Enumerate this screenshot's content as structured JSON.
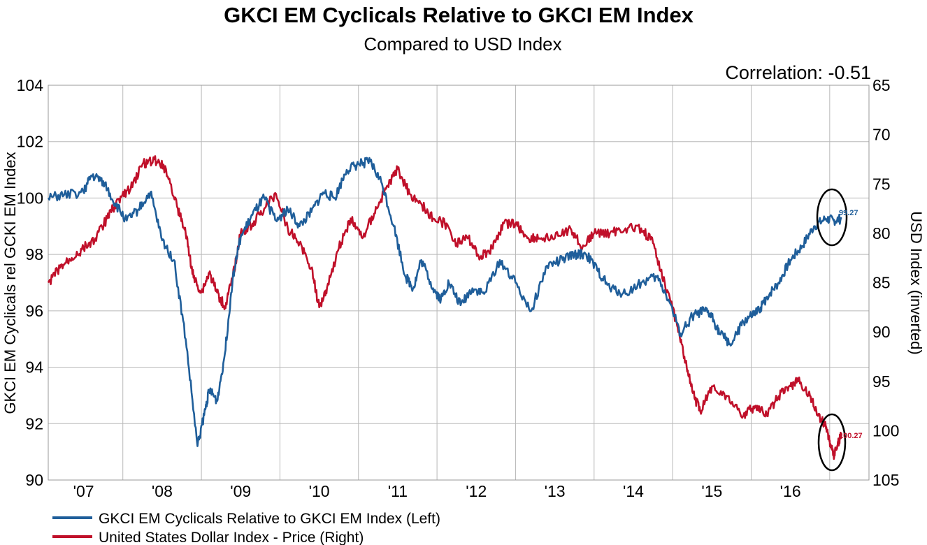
{
  "chart_data": {
    "type": "line",
    "title": "GKCI EM Cyclicals Relative to GKCI EM Index",
    "subtitle": "Compared to USD Index",
    "annotation": "Correlation: -0.51",
    "ylabel_left": "GKCI EM Cyclicals rel GCKI EM Index",
    "ylabel_right": "USD Index (inverted)",
    "ylim_left": [
      90,
      104
    ],
    "ylim_right": [
      65,
      105
    ],
    "right_axis_inverted": true,
    "x_ticks": [
      "'07",
      "'08",
      "'09",
      "'10",
      "'11",
      "'12",
      "'13",
      "'14",
      "'15",
      "'16"
    ],
    "y_ticks_left": [
      "90",
      "92",
      "94",
      "96",
      "98",
      "100",
      "102",
      "104"
    ],
    "y_ticks_right": [
      "65",
      "70",
      "75",
      "80",
      "85",
      "90",
      "95",
      "100",
      "105"
    ],
    "grid": true,
    "legend_position": "bottom",
    "series": [
      {
        "name": "GKCI EM Cyclicals Relative to GKCI EM Index  (Left)",
        "axis": "left",
        "color": "#1f5e9a",
        "end_label": "99.27",
        "x": [
          2006.55,
          2006.75,
          2007.0,
          2007.1,
          2007.25,
          2007.4,
          2007.55,
          2007.7,
          2007.85,
          2008.0,
          2008.15,
          2008.3,
          2008.45,
          2008.55,
          2008.6,
          2008.7,
          2008.8,
          2008.9,
          2009.0,
          2009.15,
          2009.3,
          2009.45,
          2009.6,
          2009.75,
          2009.9,
          2010.05,
          2010.2,
          2010.35,
          2010.5,
          2010.65,
          2010.8,
          2010.95,
          2011.1,
          2011.2,
          2011.3,
          2011.45,
          2011.55,
          2011.65,
          2011.8,
          2011.95,
          2012.1,
          2012.3,
          2012.5,
          2012.7,
          2012.9,
          2013.1,
          2013.25,
          2013.4,
          2013.55,
          2013.7,
          2013.9,
          2014.1,
          2014.3,
          2014.45,
          2014.6,
          2014.75,
          2014.9,
          2015.0,
          2015.1,
          2015.25,
          2015.4,
          2015.5,
          2015.6,
          2015.7,
          2015.85,
          2016.0,
          2016.15,
          2016.3,
          2016.45,
          2016.55,
          2016.65
        ],
        "y": [
          100.0,
          100.1,
          100.2,
          100.8,
          100.6,
          99.8,
          99.2,
          99.6,
          100.2,
          98.5,
          97.8,
          95.0,
          91.2,
          92.5,
          93.2,
          92.8,
          94.5,
          97.2,
          98.6,
          99.4,
          100.0,
          99.2,
          99.6,
          99.0,
          99.5,
          100.2,
          100.0,
          101.0,
          101.2,
          101.3,
          100.5,
          99.0,
          97.2,
          96.8,
          97.8,
          96.8,
          96.4,
          97.0,
          96.2,
          96.8,
          96.6,
          97.8,
          97.0,
          96.0,
          97.6,
          97.8,
          98.0,
          98.0,
          97.4,
          96.8,
          96.6,
          97.0,
          97.2,
          96.4,
          95.2,
          95.8,
          96.0,
          95.8,
          95.2,
          94.8,
          95.6,
          95.8,
          96.0,
          96.5,
          97.0,
          97.8,
          98.3,
          99.0,
          99.27,
          99.2,
          99.27
        ]
      },
      {
        "name": "United States Dollar Index - Price  (Right)",
        "axis": "right",
        "color": "#c0102a",
        "end_label": "100.27",
        "x": [
          2006.55,
          2006.7,
          2006.85,
          2007.0,
          2007.15,
          2007.3,
          2007.45,
          2007.6,
          2007.75,
          2007.9,
          2008.05,
          2008.2,
          2008.3,
          2008.4,
          2008.5,
          2008.6,
          2008.7,
          2008.8,
          2008.9,
          2009.0,
          2009.15,
          2009.3,
          2009.45,
          2009.6,
          2009.75,
          2009.9,
          2010.0,
          2010.1,
          2010.25,
          2010.4,
          2010.55,
          2010.7,
          2010.85,
          2011.0,
          2011.15,
          2011.3,
          2011.45,
          2011.6,
          2011.75,
          2011.9,
          2012.05,
          2012.2,
          2012.35,
          2012.5,
          2012.65,
          2012.8,
          2013.0,
          2013.2,
          2013.35,
          2013.5,
          2013.7,
          2013.9,
          2014.1,
          2014.25,
          2014.4,
          2014.55,
          2014.65,
          2014.75,
          2014.85,
          2015.0,
          2015.2,
          2015.4,
          2015.55,
          2015.7,
          2015.85,
          2016.0,
          2016.1,
          2016.25,
          2016.35,
          2016.45,
          2016.5,
          2016.55,
          2016.6,
          2016.65
        ],
        "y": [
          85.0,
          83.5,
          82.5,
          81.5,
          80.5,
          78.5,
          76.5,
          75.5,
          73.0,
          72.5,
          73.5,
          77.5,
          80.0,
          84.5,
          86.0,
          84.0,
          86.0,
          87.5,
          84.5,
          80.0,
          79.0,
          77.5,
          76.0,
          79.5,
          81.0,
          83.5,
          87.5,
          85.5,
          81.5,
          78.5,
          80.5,
          78.0,
          75.5,
          73.5,
          76.0,
          77.0,
          78.5,
          79.0,
          81.0,
          80.5,
          82.5,
          81.5,
          79.0,
          79.0,
          80.5,
          80.5,
          80.5,
          79.5,
          81.5,
          80.0,
          80.0,
          79.5,
          79.5,
          81.0,
          85.0,
          89.0,
          92.5,
          96.0,
          98.0,
          95.5,
          96.5,
          98.5,
          97.5,
          98.5,
          96.5,
          95.5,
          95.0,
          96.5,
          98.5,
          99.5,
          101.0,
          102.5,
          101.5,
          100.27
        ]
      }
    ]
  }
}
